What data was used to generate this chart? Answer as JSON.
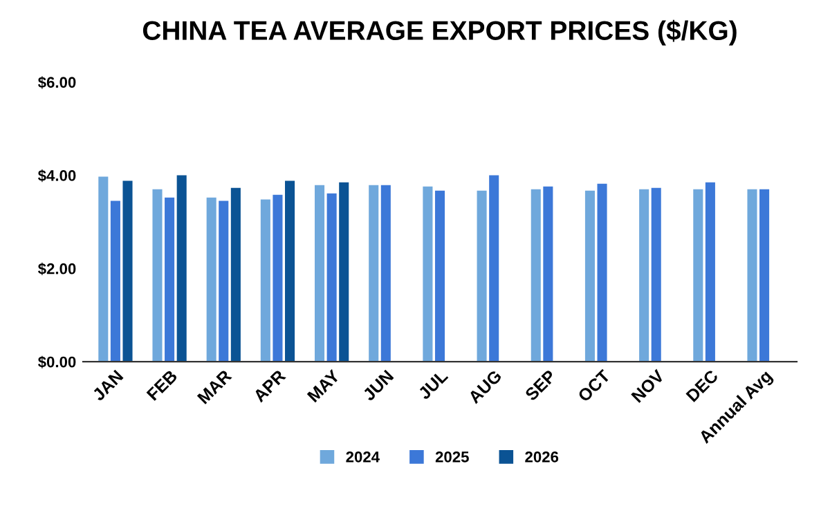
{
  "chart_data": {
    "type": "bar",
    "title": "CHINA TEA AVERAGE EXPORT PRICES ($/KG)",
    "categories": [
      "JAN",
      "FEB",
      "MAR",
      "APR",
      "MAY",
      "JUN",
      "JUL",
      "AUG",
      "SEP",
      "OCT",
      "NOV",
      "DEC",
      "Annual Avg"
    ],
    "series": [
      {
        "name": "2024",
        "color": "#6fa8dc",
        "values": [
          3.97,
          3.7,
          3.52,
          3.48,
          3.79,
          3.79,
          3.76,
          3.67,
          3.7,
          3.67,
          3.7,
          3.7,
          3.7
        ]
      },
      {
        "name": "2025",
        "color": "#3c78d8",
        "values": [
          3.45,
          3.52,
          3.45,
          3.58,
          3.61,
          3.79,
          3.67,
          4.0,
          3.76,
          3.82,
          3.73,
          3.85,
          3.7
        ]
      },
      {
        "name": "2026",
        "color": "#0b5394",
        "values": [
          3.88,
          4.0,
          3.73,
          3.88,
          3.85,
          null,
          null,
          null,
          null,
          null,
          null,
          null,
          null
        ]
      }
    ],
    "ylim": [
      0,
      6
    ],
    "yticks": [
      {
        "value": 0,
        "label": "$0.00"
      },
      {
        "value": 2,
        "label": "$2.00"
      },
      {
        "value": 4,
        "label": "$4.00"
      },
      {
        "value": 6,
        "label": "$6.00"
      }
    ],
    "grid": false,
    "legend": "bottom"
  }
}
